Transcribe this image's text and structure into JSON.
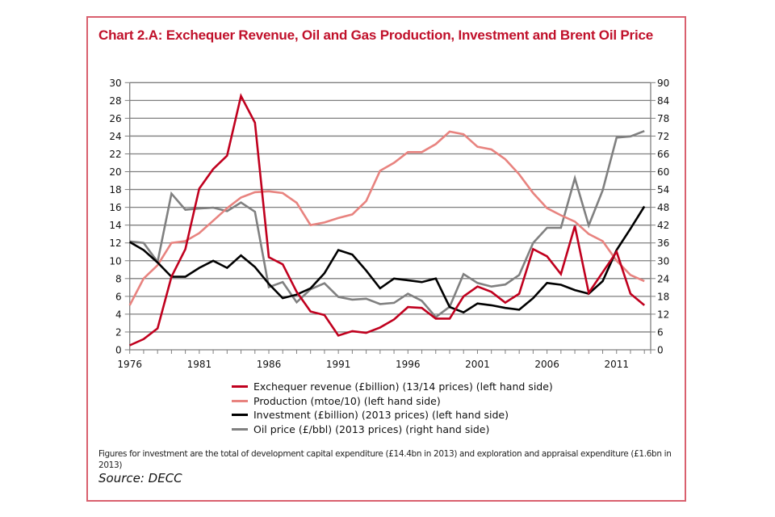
{
  "chart_data": {
    "type": "line",
    "title": "Chart 2.A: Exchequer Revenue, Oil and Gas Production, Investment and Brent Oil Price",
    "xlabel": "",
    "ylabel_left": "",
    "ylabel_right": "",
    "x": [
      1976,
      1977,
      1978,
      1979,
      1980,
      1981,
      1982,
      1983,
      1984,
      1985,
      1986,
      1987,
      1988,
      1989,
      1990,
      1991,
      1992,
      1993,
      1994,
      1995,
      1996,
      1997,
      1998,
      1999,
      2000,
      2001,
      2002,
      2003,
      2004,
      2005,
      2006,
      2007,
      2008,
      2009,
      2010,
      2011,
      2012,
      2013
    ],
    "x_tick_labels": [
      "1976",
      "1981",
      "1986",
      "1991",
      "1996",
      "2001",
      "2006",
      "2011"
    ],
    "y_left_ticks": [
      "0",
      "2",
      "4",
      "6",
      "8",
      "10",
      "12",
      "14",
      "16",
      "18",
      "20",
      "22",
      "24",
      "26",
      "28",
      "30"
    ],
    "y_right_ticks": [
      "0",
      "6",
      "12",
      "18",
      "24",
      "30",
      "36",
      "42",
      "48",
      "54",
      "60",
      "66",
      "72",
      "78",
      "84",
      "90"
    ],
    "ylim_left": [
      0,
      30
    ],
    "ylim_right": [
      0,
      90
    ],
    "grid": true,
    "legend_position": "bottom",
    "series": [
      {
        "name": "Exchequer revenue (£billion) (13/14 prices) (left hand side)",
        "axis": "left",
        "color": "#c0001e",
        "values": [
          0.5,
          1.2,
          2.4,
          8.2,
          11.3,
          18.1,
          20.3,
          21.8,
          28.5,
          25.5,
          10.4,
          9.6,
          6.5,
          4.3,
          3.9,
          1.6,
          2.1,
          1.9,
          2.5,
          3.4,
          4.8,
          4.7,
          3.5,
          3.5,
          6.0,
          7.1,
          6.5,
          5.3,
          6.3,
          11.3,
          10.5,
          8.5,
          13.9,
          6.4,
          8.7,
          11.0,
          6.3,
          5.0
        ]
      },
      {
        "name": "Production (mtoe/10) (left hand side)",
        "axis": "left",
        "color": "#e8837f",
        "values": [
          5.0,
          8.0,
          9.5,
          12.0,
          12.2,
          13.1,
          14.5,
          15.9,
          17.1,
          17.7,
          17.8,
          17.6,
          16.5,
          14.0,
          14.3,
          14.8,
          15.2,
          16.7,
          20.1,
          21.0,
          22.2,
          22.2,
          23.1,
          24.5,
          24.2,
          22.8,
          22.5,
          21.4,
          19.7,
          17.6,
          15.9,
          15.1,
          14.4,
          13.0,
          12.2,
          10.0,
          8.4,
          7.7
        ]
      },
      {
        "name": "Investment (£billion) (2013 prices) (left hand side)",
        "axis": "left",
        "color": "#000000",
        "values": [
          12.1,
          11.2,
          9.8,
          8.2,
          8.2,
          9.2,
          10.0,
          9.2,
          10.6,
          9.3,
          7.4,
          5.8,
          6.2,
          6.9,
          8.6,
          11.2,
          10.7,
          8.9,
          6.9,
          8.0,
          7.8,
          7.6,
          8.0,
          4.8,
          4.2,
          5.2,
          5.0,
          4.7,
          4.5,
          5.8,
          7.5,
          7.3,
          6.7,
          6.3,
          7.7,
          11.2,
          13.6,
          16.1
        ]
      },
      {
        "name": "Oil price (£/bbl) (2013 prices) (right hand side)",
        "axis": "right",
        "color": "#808080",
        "values": [
          36.5,
          36.0,
          29.6,
          52.6,
          47.2,
          47.6,
          47.9,
          46.7,
          49.6,
          46.5,
          21.1,
          22.8,
          16.0,
          20.4,
          22.4,
          17.8,
          16.9,
          17.2,
          15.4,
          15.8,
          18.9,
          16.5,
          11.0,
          14.5,
          25.5,
          22.5,
          21.3,
          22.0,
          25.2,
          36.0,
          41.1,
          41.1,
          57.8,
          41.9,
          53.7,
          71.5,
          71.9,
          73.7
        ]
      }
    ]
  },
  "legend": [
    {
      "label": "Exchequer revenue (£billion) (13/14 prices) (left hand side)",
      "color": "#c0001e"
    },
    {
      "label": "Production (mtoe/10) (left hand side)",
      "color": "#e8837f"
    },
    {
      "label": "Investment (£billion) (2013 prices) (left hand side)",
      "color": "#000000"
    },
    {
      "label": "Oil price (£/bbl) (2013 prices) (right hand side)",
      "color": "#808080"
    }
  ],
  "footnote": "Figures for investment are the total of development capital expenditure (£14.4bn in 2013) and exploration and appraisal expenditure (£1.6bn in 2013)",
  "source": "Source:  DECC",
  "colors": {
    "frame": "#d9606e",
    "title": "#c0102a",
    "grid": "#7f7f7f"
  }
}
